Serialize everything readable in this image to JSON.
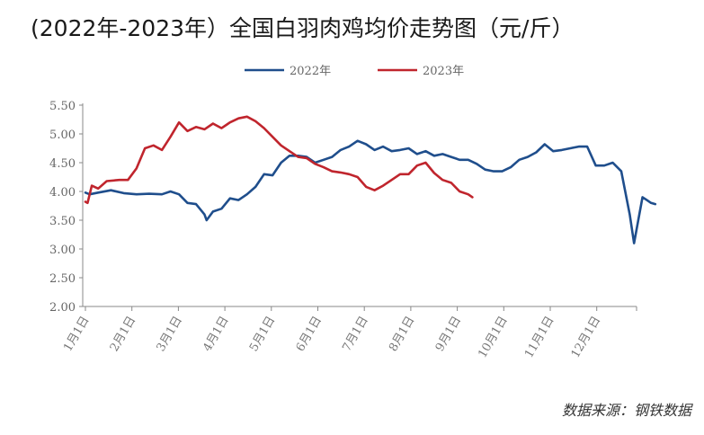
{
  "title": "(2022年-2023年）全国白羽肉鸡均价走势图（元/斤）",
  "source": "数据来源：钢铁数据",
  "chart_data": {
    "type": "line",
    "title": "(2022年-2023年）全国白羽肉鸡均价走势图（元/斤）",
    "xlabel": "",
    "ylabel": "",
    "ylim": [
      2.0,
      5.5
    ],
    "yticks": [
      "2.00",
      "2.50",
      "3.00",
      "3.50",
      "4.00",
      "4.50",
      "5.00",
      "5.50"
    ],
    "x_tick_labels": [
      "1月1日",
      "2月1日",
      "3月1日",
      "4月1日",
      "5月1日",
      "6月1日",
      "7月1日",
      "8月1日",
      "9月1日",
      "10月1日",
      "11月1日",
      "12月1日"
    ],
    "legend_position": "top",
    "grid": false,
    "colors": {
      "2022年": "#1f4e8c",
      "2023年": "#c0252d"
    },
    "series": [
      {
        "name": "2022年",
        "x": [
          0,
          0.1,
          0.3,
          0.6,
          0.9,
          1.2,
          1.5,
          1.8,
          2.0,
          2.2,
          2.4,
          2.6,
          2.8,
          2.85,
          3.0,
          3.2,
          3.4,
          3.6,
          3.8,
          4.0,
          4.2,
          4.4,
          4.6,
          4.8,
          5.0,
          5.2,
          5.4,
          5.6,
          5.8,
          6.0,
          6.2,
          6.4,
          6.5,
          6.6,
          6.8,
          7.0,
          7.2,
          7.4,
          7.6,
          7.8,
          8.0,
          8.2,
          8.4,
          8.6,
          8.8,
          9.0,
          9.2,
          9.4,
          9.6,
          9.8,
          10.0,
          10.2,
          10.4,
          10.6,
          10.8,
          11.0,
          11.2,
          11.4,
          11.6,
          11.8,
          12.0,
          12.2,
          12.4,
          12.6,
          12.8,
          12.9,
          13.0,
          13.1,
          13.2,
          13.3,
          13.4
        ],
        "values": [
          3.98,
          3.95,
          3.98,
          4.02,
          3.97,
          3.95,
          3.96,
          3.95,
          4.0,
          3.95,
          3.8,
          3.78,
          3.6,
          3.5,
          3.65,
          3.7,
          3.88,
          3.85,
          3.95,
          4.08,
          4.3,
          4.28,
          4.5,
          4.62,
          4.62,
          4.6,
          4.5,
          4.55,
          4.6,
          4.72,
          4.78,
          4.88,
          4.85,
          4.82,
          4.72,
          4.78,
          4.7,
          4.72,
          4.75,
          4.65,
          4.7,
          4.62,
          4.65,
          4.6,
          4.55,
          4.55,
          4.48,
          4.38,
          4.35,
          4.35,
          4.42,
          4.55,
          4.6,
          4.68,
          4.82,
          4.7,
          4.72,
          4.75,
          4.78,
          4.78,
          4.45,
          4.45,
          4.5,
          4.35,
          3.6,
          3.1,
          3.5,
          3.9,
          3.85,
          3.8,
          3.78
        ],
        "style": "solid"
      },
      {
        "name": "2023年",
        "x": [
          0,
          0.05,
          0.15,
          0.3,
          0.5,
          0.8,
          1.0,
          1.2,
          1.4,
          1.6,
          1.8,
          2.0,
          2.2,
          2.4,
          2.6,
          2.8,
          3.0,
          3.2,
          3.4,
          3.6,
          3.8,
          4.0,
          4.2,
          4.4,
          4.6,
          4.8,
          5.0,
          5.2,
          5.4,
          5.6,
          5.8,
          6.0,
          6.2,
          6.4,
          6.6,
          6.8,
          7.0,
          7.2,
          7.4,
          7.6,
          7.8,
          8.0,
          8.2,
          8.4,
          8.6,
          8.8,
          9.0,
          9.1
        ],
        "values": [
          3.82,
          3.8,
          4.1,
          4.05,
          4.18,
          4.2,
          4.2,
          4.4,
          4.75,
          4.8,
          4.72,
          4.95,
          5.2,
          5.05,
          5.12,
          5.08,
          5.18,
          5.1,
          5.2,
          5.27,
          5.3,
          5.22,
          5.1,
          4.95,
          4.8,
          4.7,
          4.6,
          4.58,
          4.48,
          4.42,
          4.35,
          4.33,
          4.3,
          4.25,
          4.08,
          4.02,
          4.1,
          4.2,
          4.3,
          4.3,
          4.45,
          4.5,
          4.32,
          4.2,
          4.15,
          4.0,
          3.95,
          3.9
        ],
        "style": "solid"
      }
    ]
  }
}
